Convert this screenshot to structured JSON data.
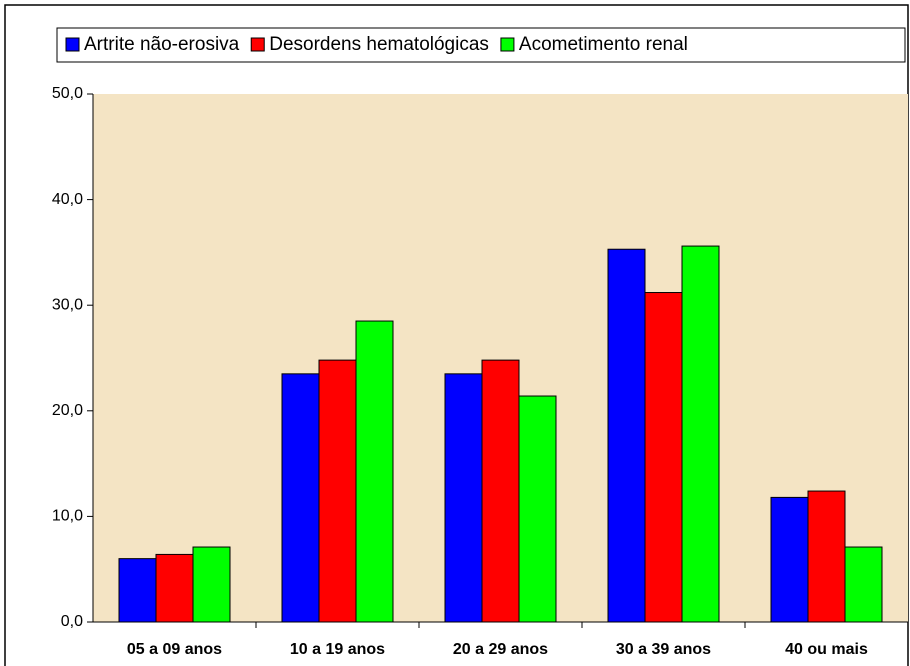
{
  "chart_data": {
    "type": "bar",
    "categories": [
      "05 a 09 anos",
      "10 a 19 anos",
      "20 a 29 anos",
      "30 a 39 anos",
      "40 ou mais"
    ],
    "series": [
      {
        "name": "Artrite não-erosiva",
        "color": "#0000ff",
        "values": [
          6.0,
          23.5,
          23.5,
          35.3,
          11.8
        ]
      },
      {
        "name": "Desordens hematológicas",
        "color": "#ff0000",
        "values": [
          6.4,
          24.8,
          24.8,
          31.2,
          12.4
        ]
      },
      {
        "name": "Acometimento renal",
        "color": "#00ff00",
        "values": [
          7.1,
          28.5,
          21.4,
          35.6,
          7.1
        ]
      }
    ],
    "ylim": [
      0,
      50
    ],
    "yticks": [
      {
        "value": 0,
        "label": "0,0"
      },
      {
        "value": 10,
        "label": "10,0"
      },
      {
        "value": 20,
        "label": "20,0"
      },
      {
        "value": 30,
        "label": "30,0"
      },
      {
        "value": 40,
        "label": "40,0"
      },
      {
        "value": 50,
        "label": "50,0"
      }
    ],
    "legend": "top"
  }
}
